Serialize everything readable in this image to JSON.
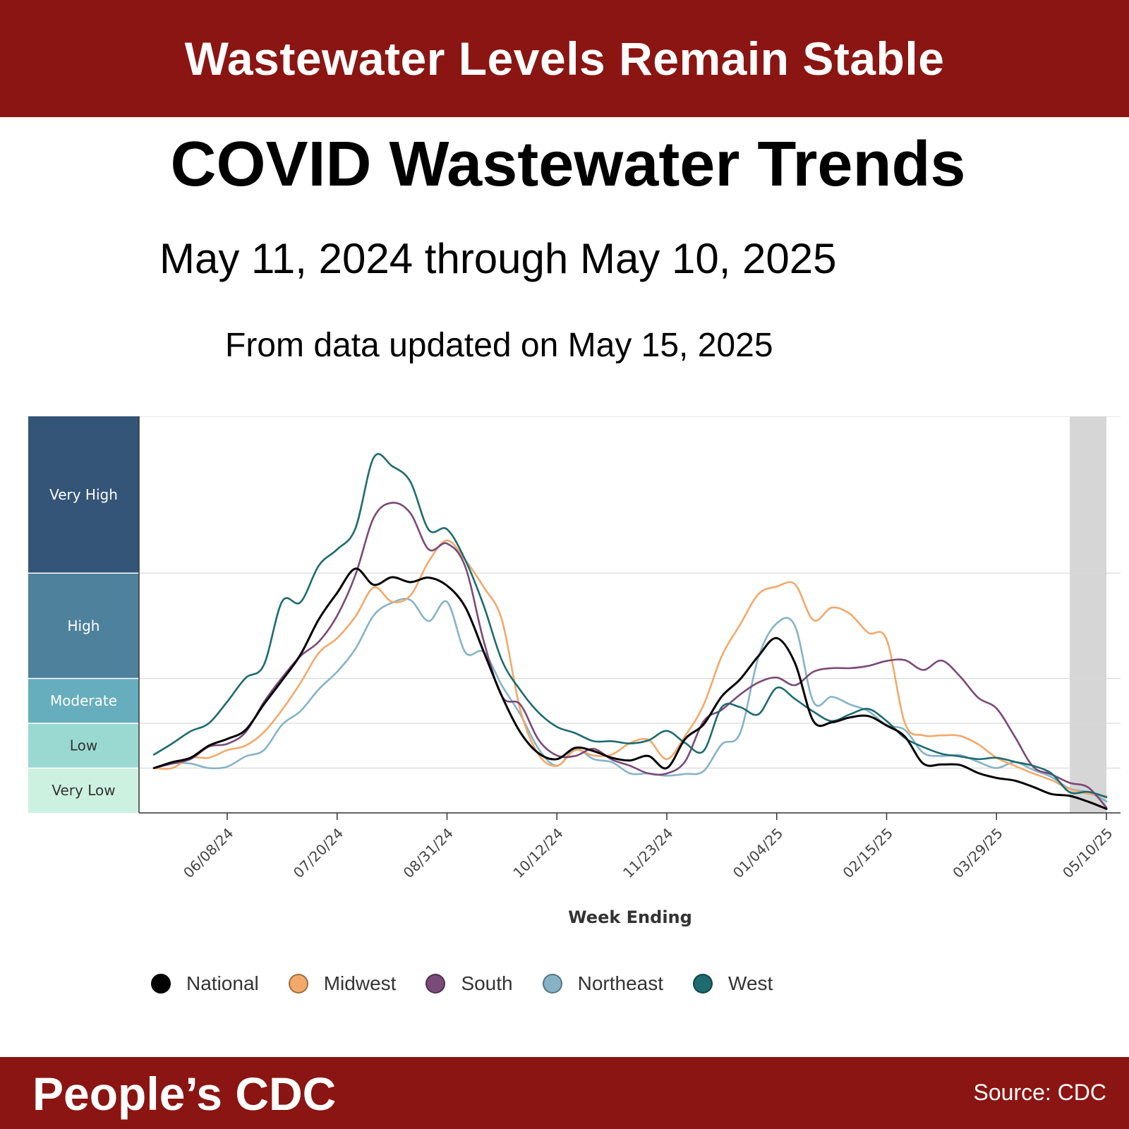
{
  "banner": {
    "headline": "Wastewater Levels Remain Stable"
  },
  "header": {
    "title": "COVID Wastewater Trends",
    "date_range": "May 11, 2024 through May 10, 2025",
    "updated": "From data updated on May 15, 2025"
  },
  "footer": {
    "brand": "People’s CDC",
    "source": "Source: CDC"
  },
  "colors": {
    "banner": "#8b1512",
    "National": "#000000",
    "Midwest": "#f2a96a",
    "South": "#7a4a78",
    "Northeast": "#86b3c7",
    "West": "#1e6b70",
    "band_very_high": "#345578",
    "band_high": "#4e819c",
    "band_moderate": "#66aebd",
    "band_low": "#9ad9d2",
    "band_very_low": "#cdf1e1",
    "provisional_shade": "#d6d6d6"
  },
  "chart_data": {
    "type": "line",
    "xlabel": "Week Ending",
    "ylabel": "",
    "x_ticks": [
      "06/08/24",
      "07/20/24",
      "08/31/24",
      "10/12/24",
      "11/23/24",
      "01/04/25",
      "02/15/25",
      "03/29/25",
      "05/10/25"
    ],
    "levels": [
      "Very Low",
      "Low",
      "Moderate",
      "High",
      "Very High"
    ],
    "level_units": "index: 0-1 Very Low, 1-2 Low, 2-3 Moderate, 3-5.35 High, 5.35-8.85 Very High",
    "ylim": [
      0,
      8.85
    ],
    "grid": "horizontal lines at level boundaries",
    "legend_position": "bottom",
    "shaded_region": {
      "from": "2025-04-26",
      "to": "2025-05-10"
    },
    "x": [
      "2024-05-11",
      "2024-05-18",
      "2024-05-25",
      "2024-06-01",
      "2024-06-08",
      "2024-06-15",
      "2024-06-22",
      "2024-06-29",
      "2024-07-06",
      "2024-07-13",
      "2024-07-20",
      "2024-07-27",
      "2024-08-03",
      "2024-08-10",
      "2024-08-17",
      "2024-08-24",
      "2024-08-31",
      "2024-09-07",
      "2024-09-14",
      "2024-09-21",
      "2024-09-28",
      "2024-10-05",
      "2024-10-12",
      "2024-10-19",
      "2024-10-26",
      "2024-11-02",
      "2024-11-09",
      "2024-11-16",
      "2024-11-23",
      "2024-11-30",
      "2024-12-07",
      "2024-12-14",
      "2024-12-21",
      "2024-12-28",
      "2025-01-04",
      "2025-01-11",
      "2025-01-18",
      "2025-01-25",
      "2025-02-01",
      "2025-02-08",
      "2025-02-15",
      "2025-02-22",
      "2025-03-01",
      "2025-03-08",
      "2025-03-15",
      "2025-03-22",
      "2025-03-29",
      "2025-04-05",
      "2025-04-12",
      "2025-04-19",
      "2025-04-26",
      "2025-05-03",
      "2025-05-10"
    ],
    "series": [
      {
        "name": "National",
        "values": [
          1.0,
          1.13,
          1.23,
          1.5,
          1.65,
          1.85,
          2.42,
          2.96,
          3.53,
          4.32,
          4.91,
          5.45,
          5.09,
          5.26,
          5.15,
          5.25,
          5.07,
          4.59,
          3.6,
          2.6,
          1.8,
          1.33,
          1.2,
          1.45,
          1.38,
          1.23,
          1.17,
          1.27,
          1.0,
          1.65,
          1.97,
          2.6,
          2.98,
          3.5,
          3.9,
          3.34,
          2.05,
          2.02,
          2.13,
          2.16,
          1.95,
          1.7,
          1.1,
          1.08,
          1.07,
          0.89,
          0.78,
          0.72,
          0.58,
          0.42,
          0.38,
          0.25,
          0.09
        ]
      },
      {
        "name": "Midwest",
        "values": [
          1.0,
          1.0,
          1.23,
          1.23,
          1.4,
          1.5,
          1.8,
          2.3,
          2.9,
          3.57,
          3.9,
          4.38,
          5.03,
          4.71,
          4.85,
          5.61,
          6.08,
          5.64,
          5.04,
          4.3,
          2.3,
          1.3,
          1.05,
          1.4,
          1.28,
          1.3,
          1.56,
          1.63,
          1.2,
          1.72,
          2.4,
          3.5,
          4.2,
          4.88,
          5.05,
          5.1,
          4.3,
          4.58,
          4.44,
          4.02,
          3.87,
          2.0,
          1.73,
          1.73,
          1.72,
          1.53,
          1.23,
          1.05,
          0.88,
          0.73,
          0.53,
          0.43,
          0.37
        ]
      },
      {
        "name": "South",
        "values": [
          1.0,
          1.1,
          1.2,
          1.48,
          1.54,
          1.8,
          2.47,
          3.02,
          3.5,
          3.82,
          4.4,
          5.31,
          6.59,
          6.92,
          6.69,
          5.88,
          6.01,
          5.49,
          3.84,
          2.6,
          2.42,
          1.63,
          1.28,
          1.27,
          1.43,
          1.19,
          1.05,
          0.88,
          0.88,
          1.15,
          2.04,
          2.3,
          2.64,
          2.91,
          3.02,
          2.85,
          3.15,
          3.23,
          3.23,
          3.28,
          3.39,
          3.41,
          3.19,
          3.4,
          3.05,
          2.57,
          2.33,
          1.7,
          1.03,
          0.86,
          0.67,
          0.57,
          0.12
        ]
      },
      {
        "name": "Northeast",
        "values": [
          1.0,
          1.1,
          1.1,
          1.0,
          1.03,
          1.26,
          1.4,
          1.97,
          2.27,
          2.76,
          3.15,
          3.66,
          4.41,
          4.69,
          4.75,
          4.28,
          4.71,
          3.58,
          3.59,
          2.84,
          2.2,
          1.43,
          1.05,
          1.43,
          1.2,
          1.13,
          0.88,
          0.88,
          0.83,
          0.87,
          0.93,
          1.53,
          1.78,
          3.47,
          4.23,
          4.17,
          2.48,
          2.59,
          2.42,
          2.27,
          1.96,
          1.85,
          1.34,
          1.27,
          1.29,
          1.14,
          1.0,
          1.13,
          0.96,
          0.8,
          0.54,
          0.46,
          0.26
        ]
      },
      {
        "name": "West",
        "values": [
          1.3,
          1.55,
          1.82,
          2.0,
          2.48,
          3.01,
          3.3,
          4.72,
          4.7,
          5.52,
          5.88,
          6.35,
          7.93,
          7.74,
          7.39,
          6.32,
          6.33,
          5.64,
          4.63,
          3.4,
          2.74,
          2.24,
          1.92,
          1.78,
          1.6,
          1.6,
          1.55,
          1.62,
          1.83,
          1.56,
          1.38,
          2.36,
          2.36,
          2.2,
          2.79,
          2.54,
          2.26,
          2.05,
          2.2,
          2.32,
          2.05,
          1.67,
          1.47,
          1.32,
          1.26,
          1.2,
          1.23,
          1.14,
          1.05,
          0.88,
          0.46,
          0.47,
          0.35
        ]
      }
    ]
  }
}
